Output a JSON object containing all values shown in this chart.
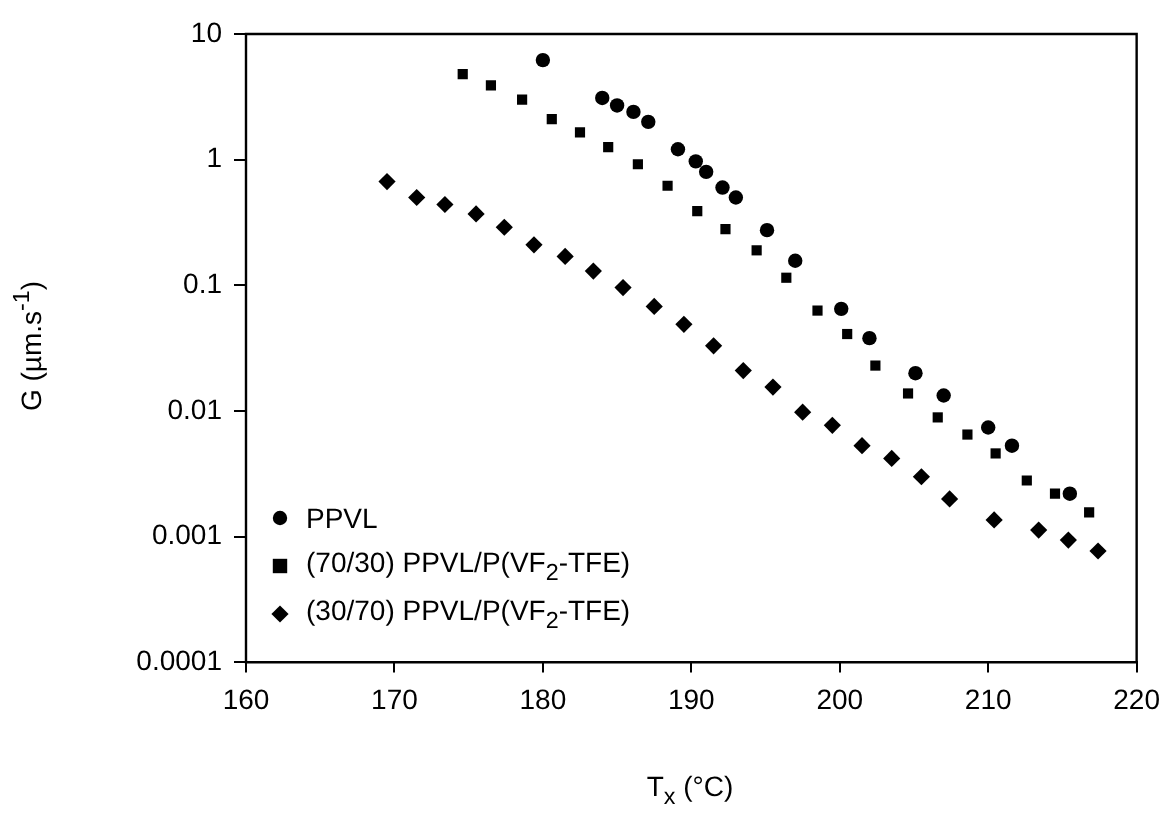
{
  "chart_data": {
    "type": "scatter",
    "xlabel": "T$_{x}$  (°C)",
    "ylabel": "G (µm.s$^{-1}$)",
    "log": "y",
    "xlim": [
      160,
      220
    ],
    "xticks": [
      160,
      170,
      180,
      190,
      200,
      210,
      220
    ],
    "ylim": [
      0.0001,
      10
    ],
    "yticks": [
      0.0001,
      0.001,
      0.01,
      0.1,
      1,
      10
    ],
    "grid": false,
    "legend": "bottom left",
    "series": [
      {
        "name": "PPVL",
        "color": "#000000",
        "marker": "circle",
        "x": [
          180.0,
          184.0,
          185.0,
          186.1,
          187.1,
          189.1,
          190.3,
          191.0,
          192.1,
          193.0,
          195.1,
          197.0,
          200.1,
          202.0,
          205.1,
          207.0,
          210.0,
          211.6,
          215.5
        ],
        "values": [
          6.2,
          3.1,
          2.7,
          2.4,
          2.0,
          1.21,
          0.97,
          0.8,
          0.6,
          0.5,
          0.275,
          0.157,
          0.065,
          0.038,
          0.02,
          0.0133,
          0.0074,
          0.0053,
          0.0022
        ]
      },
      {
        "name": "(70/30)  PPVL/P(VF$_{2}$-TFE)",
        "color": "#000000",
        "marker": "square",
        "x": [
          174.6,
          176.5,
          178.6,
          180.6,
          182.5,
          184.4,
          186.4,
          188.4,
          190.4,
          192.3,
          194.4,
          196.4,
          198.5,
          200.5,
          202.4,
          204.6,
          206.6,
          208.6,
          210.5,
          212.6,
          214.5,
          216.8
        ],
        "values": [
          4.8,
          3.9,
          3.0,
          2.1,
          1.65,
          1.26,
          0.92,
          0.62,
          0.39,
          0.28,
          0.19,
          0.115,
          0.063,
          0.041,
          0.023,
          0.0138,
          0.0089,
          0.0065,
          0.0046,
          0.0028,
          0.0022,
          0.00156
        ]
      },
      {
        "name": "(30/70)  PPVL/P(VF$_{2}$-TFE)",
        "color": "#000000",
        "marker": "diamond",
        "x": [
          169.5,
          171.5,
          173.4,
          175.5,
          177.4,
          179.4,
          181.5,
          183.4,
          185.4,
          187.5,
          189.5,
          191.5,
          193.5,
          195.5,
          197.5,
          199.5,
          201.5,
          203.5,
          205.5,
          207.4,
          210.4,
          213.4,
          215.4,
          217.4
        ],
        "values": [
          0.67,
          0.5,
          0.44,
          0.37,
          0.29,
          0.21,
          0.17,
          0.13,
          0.096,
          0.068,
          0.049,
          0.033,
          0.021,
          0.0155,
          0.0098,
          0.0077,
          0.0053,
          0.0042,
          0.003,
          0.002,
          0.00136,
          0.00113,
          0.00094,
          0.00077
        ]
      }
    ]
  }
}
